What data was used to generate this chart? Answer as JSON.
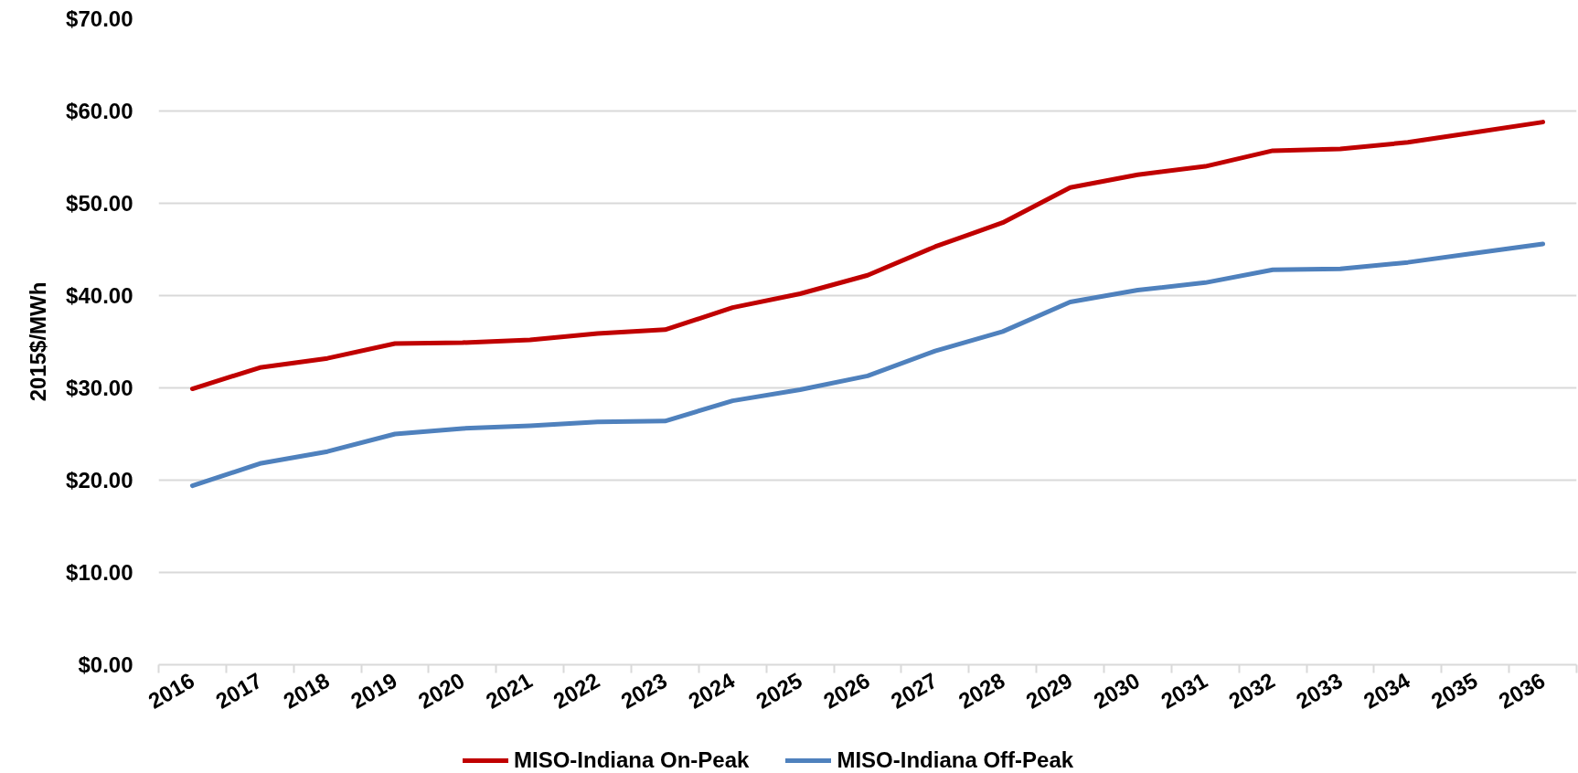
{
  "chart_data": {
    "type": "line",
    "ylabel": "2015$/MWh",
    "categories": [
      "2016",
      "2017",
      "2018",
      "2019",
      "2020",
      "2021",
      "2022",
      "2023",
      "2024",
      "2025",
      "2026",
      "2027",
      "2028",
      "2029",
      "2030",
      "2031",
      "2032",
      "2033",
      "2034",
      "2035",
      "2036"
    ],
    "series": [
      {
        "name": "MISO-Indiana On-Peak",
        "color": "#c00000",
        "values": [
          29.9,
          32.2,
          33.2,
          34.8,
          34.9,
          35.2,
          35.9,
          36.3,
          38.7,
          40.2,
          42.2,
          45.3,
          47.9,
          51.7,
          53.1,
          54.0,
          55.7,
          55.9,
          56.6,
          57.7,
          58.8
        ]
      },
      {
        "name": "MISO-Indiana Off-Peak",
        "color": "#4f81bd",
        "values": [
          19.4,
          21.8,
          23.1,
          25.0,
          25.6,
          25.9,
          26.3,
          26.4,
          28.6,
          29.8,
          31.3,
          34.0,
          36.1,
          39.3,
          40.6,
          41.4,
          42.8,
          42.9,
          43.6,
          44.6,
          45.6
        ]
      }
    ],
    "ylim": [
      0,
      70
    ],
    "yticks": [
      {
        "value": 0,
        "label": "$0.00"
      },
      {
        "value": 10,
        "label": "$10.00"
      },
      {
        "value": 20,
        "label": "$20.00"
      },
      {
        "value": 30,
        "label": "$30.00"
      },
      {
        "value": 40,
        "label": "$40.00"
      },
      {
        "value": 50,
        "label": "$50.00"
      },
      {
        "value": 60,
        "label": "$60.00"
      },
      {
        "value": 70,
        "label": "$70.00"
      }
    ],
    "grid": "y",
    "legend": "bottom",
    "line_style": "solid"
  }
}
